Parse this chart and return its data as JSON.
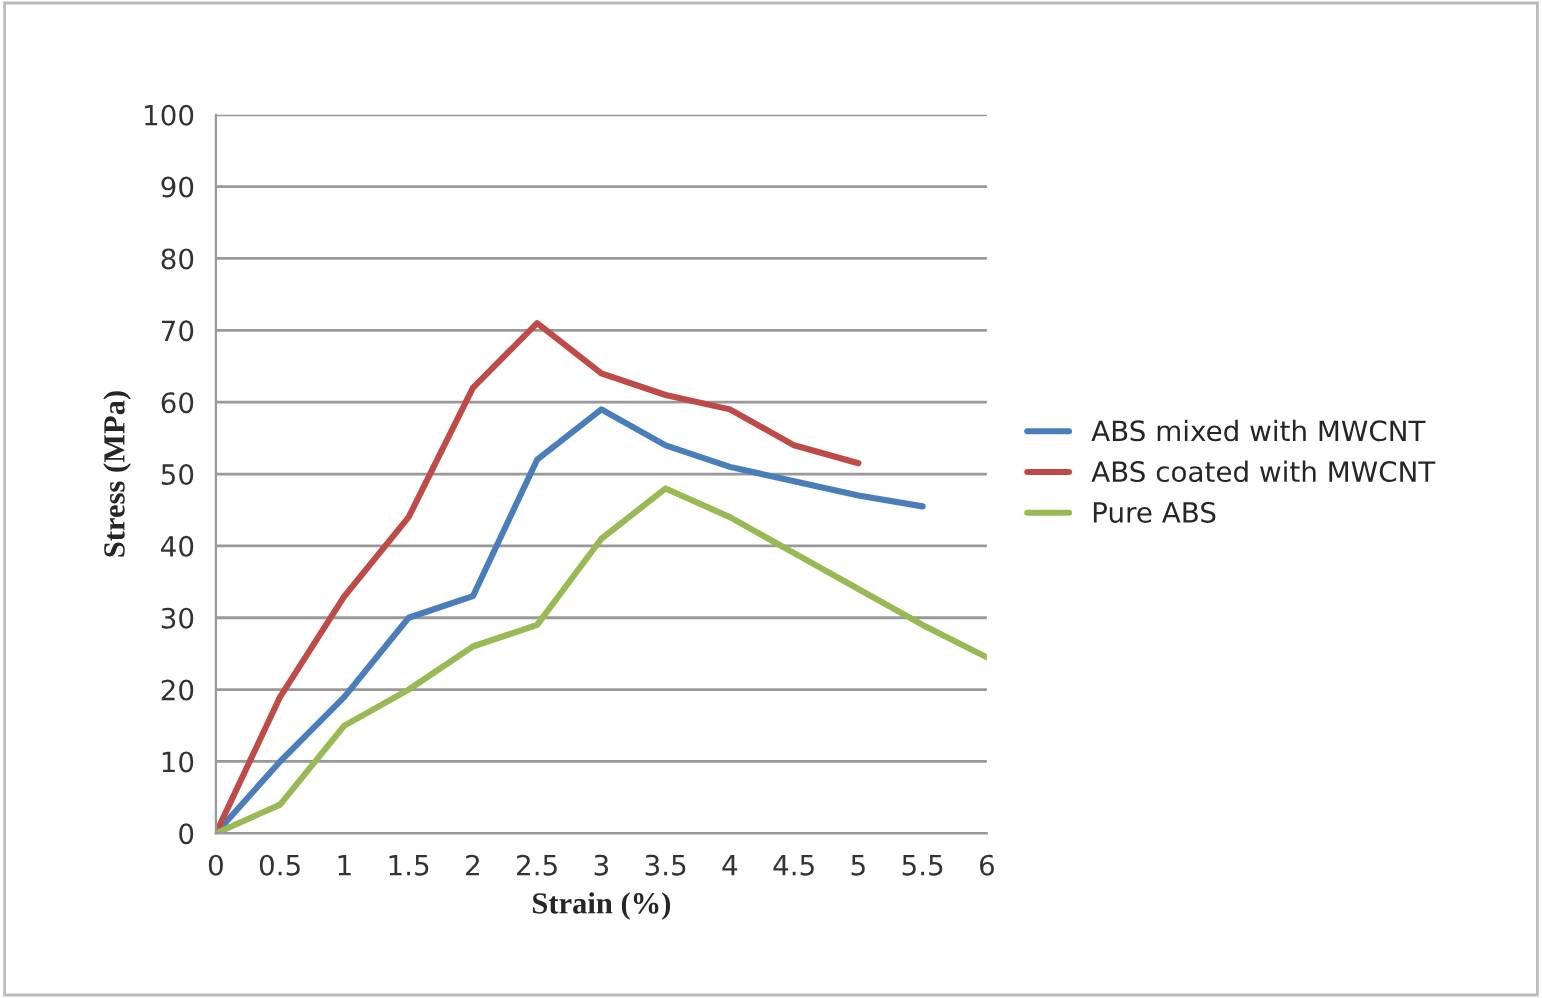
{
  "chart_data": {
    "type": "line",
    "xlabel": "Strain (%)",
    "ylabel": "Stress (MPa)",
    "x": [
      0,
      0.5,
      1,
      1.5,
      2,
      2.5,
      3,
      3.5,
      4,
      4.5,
      5,
      5.5,
      6
    ],
    "series": [
      {
        "name": "ABS mixed with MWCNT",
        "color": "#4a7ebb",
        "x": [
          0,
          0.5,
          1,
          1.5,
          2,
          2.5,
          3,
          3.5,
          4,
          4.5,
          5,
          5.5
        ],
        "values": [
          0,
          10,
          19,
          30,
          33,
          52,
          59,
          54,
          51,
          49,
          47,
          45.5
        ]
      },
      {
        "name": "ABS coated with MWCNT",
        "color": "#be4b48",
        "x": [
          0,
          0.5,
          1,
          1.5,
          2,
          2.5,
          3,
          3.5,
          4,
          4.5,
          5
        ],
        "values": [
          0,
          19,
          33,
          44,
          62,
          71,
          64,
          61,
          59,
          54,
          51.5
        ]
      },
      {
        "name": "Pure ABS",
        "color": "#98b954",
        "values": [
          0,
          4,
          15,
          20,
          26,
          29,
          41,
          48,
          44,
          39,
          34,
          29,
          24.5
        ]
      }
    ],
    "xlim": [
      0,
      6
    ],
    "xticks": [
      0,
      0.5,
      1,
      1.5,
      2,
      2.5,
      3,
      3.5,
      4,
      4.5,
      5,
      5.5,
      6
    ],
    "ylim": [
      0,
      100
    ],
    "yticks": [
      0,
      10,
      20,
      30,
      40,
      50,
      60,
      70,
      80,
      90,
      100
    ],
    "grid": "y",
    "legend": "right",
    "marker": "none",
    "line_style": "solid"
  }
}
